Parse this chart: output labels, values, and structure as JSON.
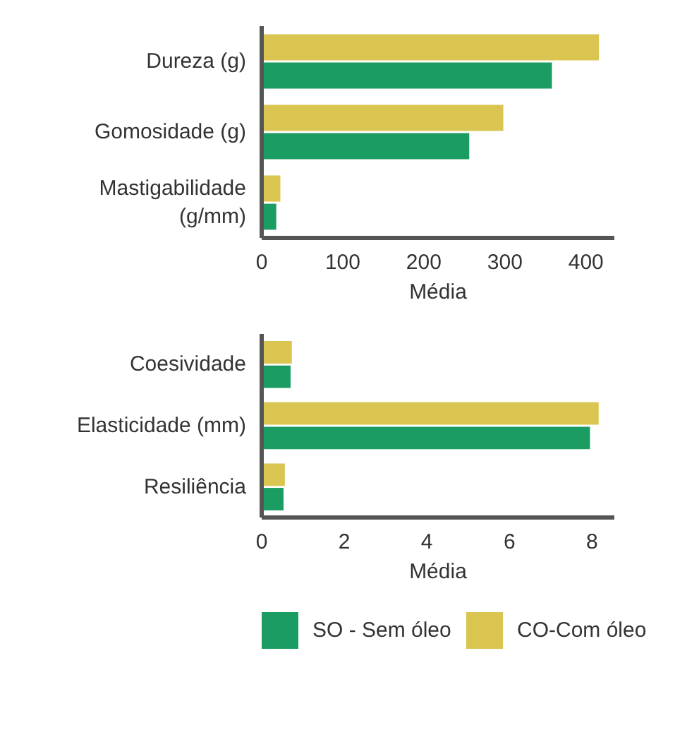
{
  "chart_data": [
    {
      "type": "bar",
      "orientation": "horizontal",
      "categories": [
        "Dureza (g)",
        "Gomosidade (g)",
        "Mastigabilidade\n(g/mm)"
      ],
      "xlabel": "Média",
      "xlim": [
        0,
        435
      ],
      "xticks": [
        0,
        100,
        200,
        300,
        400
      ],
      "grid": false,
      "series": [
        {
          "color": "#1b9c63",
          "values": [
            358,
            256,
            18
          ]
        },
        {
          "color": "#d9c550",
          "values": [
            416,
            298,
            23
          ]
        }
      ]
    },
    {
      "type": "bar",
      "orientation": "horizontal",
      "categories": [
        "Coesividade",
        "Elasticidade (mm)",
        "Resiliência"
      ],
      "xlabel": "Média",
      "xlim": [
        0,
        8.54
      ],
      "xticks": [
        0,
        2,
        4,
        6,
        8
      ],
      "grid": false,
      "legend": "bottom",
      "series": [
        {
          "name": "SO - Sem óleo",
          "color": "#1b9c63",
          "values": [
            0.7,
            7.95,
            0.53
          ]
        },
        {
          "name": "CO-Com óleo",
          "color": "#d9c550",
          "values": [
            0.73,
            8.16,
            0.56
          ]
        }
      ]
    }
  ]
}
